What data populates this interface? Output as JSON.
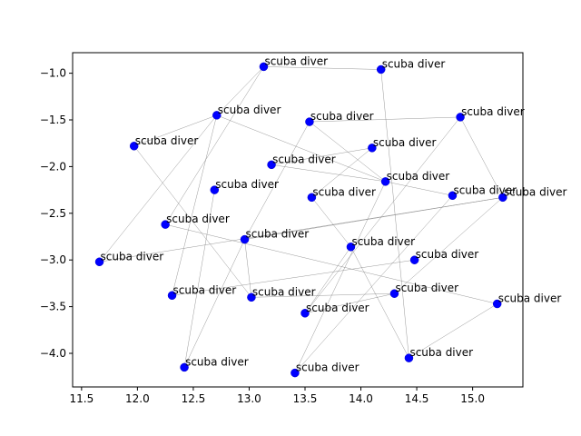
{
  "chart_data": {
    "type": "scatter",
    "title": "",
    "xlabel": "",
    "ylabel": "",
    "xlim": [
      11.42,
      15.45
    ],
    "ylim": [
      -4.36,
      -0.78
    ],
    "xticks": [
      11.5,
      12.0,
      12.5,
      13.0,
      13.5,
      14.0,
      14.5,
      15.0
    ],
    "xtick_labels": [
      "11.5",
      "12.0",
      "12.5",
      "13.0",
      "13.5",
      "14.0",
      "14.5",
      "15.0"
    ],
    "yticks": [
      -1.0,
      -1.5,
      -2.0,
      -2.5,
      -3.0,
      -3.5,
      -4.0
    ],
    "ytick_labels": [
      "−1.0",
      "−1.5",
      "−2.0",
      "−2.5",
      "−3.0",
      "−3.5",
      "−4.0"
    ],
    "grid": false,
    "colors": {
      "points": "#0000ff",
      "edges": "#808080"
    },
    "points": [
      {
        "x": 13.13,
        "y": -0.93,
        "label": "scuba diver"
      },
      {
        "x": 14.18,
        "y": -0.96,
        "label": "scuba diver"
      },
      {
        "x": 12.71,
        "y": -1.45,
        "label": "scuba diver"
      },
      {
        "x": 13.54,
        "y": -1.52,
        "label": "scuba diver"
      },
      {
        "x": 14.89,
        "y": -1.47,
        "label": "scuba diver"
      },
      {
        "x": 11.97,
        "y": -1.78,
        "label": "scuba diver"
      },
      {
        "x": 14.1,
        "y": -1.8,
        "label": "scuba diver"
      },
      {
        "x": 13.2,
        "y": -1.98,
        "label": "scuba diver"
      },
      {
        "x": 14.22,
        "y": -2.16,
        "label": "scuba diver"
      },
      {
        "x": 12.69,
        "y": -2.25,
        "label": "scuba diver"
      },
      {
        "x": 13.56,
        "y": -2.33,
        "label": "scuba diver"
      },
      {
        "x": 14.82,
        "y": -2.31,
        "label": "scuba diver"
      },
      {
        "x": 15.27,
        "y": -2.33,
        "label": "scuba diver"
      },
      {
        "x": 12.25,
        "y": -2.62,
        "label": "scuba diver"
      },
      {
        "x": 12.96,
        "y": -2.78,
        "label": "scuba diver"
      },
      {
        "x": 13.91,
        "y": -2.86,
        "label": "scuba diver"
      },
      {
        "x": 11.66,
        "y": -3.02,
        "label": "scuba diver"
      },
      {
        "x": 14.48,
        "y": -3.0,
        "label": "scuba diver"
      },
      {
        "x": 12.31,
        "y": -3.38,
        "label": "scuba diver"
      },
      {
        "x": 13.02,
        "y": -3.4,
        "label": "scuba diver"
      },
      {
        "x": 14.3,
        "y": -3.36,
        "label": "scuba diver"
      },
      {
        "x": 15.22,
        "y": -3.47,
        "label": "scuba diver"
      },
      {
        "x": 13.5,
        "y": -3.57,
        "label": "scuba diver"
      },
      {
        "x": 14.43,
        "y": -4.05,
        "label": "scuba diver"
      },
      {
        "x": 12.42,
        "y": -4.15,
        "label": "scuba diver"
      },
      {
        "x": 13.41,
        "y": -4.21,
        "label": "scuba diver"
      }
    ],
    "edges": [
      [
        0,
        1
      ],
      [
        0,
        2
      ],
      [
        0,
        13
      ],
      [
        1,
        23
      ],
      [
        2,
        5
      ],
      [
        2,
        16
      ],
      [
        2,
        18
      ],
      [
        2,
        8
      ],
      [
        3,
        4
      ],
      [
        3,
        14
      ],
      [
        5,
        19
      ],
      [
        6,
        7
      ],
      [
        6,
        10
      ],
      [
        7,
        8
      ],
      [
        8,
        11
      ],
      [
        3,
        8
      ],
      [
        9,
        24
      ],
      [
        10,
        15
      ],
      [
        11,
        25
      ],
      [
        12,
        14
      ],
      [
        12,
        20
      ],
      [
        12,
        4
      ],
      [
        4,
        22
      ],
      [
        13,
        21
      ],
      [
        14,
        24
      ],
      [
        14,
        19
      ],
      [
        15,
        23
      ],
      [
        15,
        22
      ],
      [
        16,
        12
      ],
      [
        17,
        18
      ],
      [
        19,
        20
      ],
      [
        20,
        22
      ],
      [
        21,
        23
      ],
      [
        8,
        25
      ]
    ]
  }
}
